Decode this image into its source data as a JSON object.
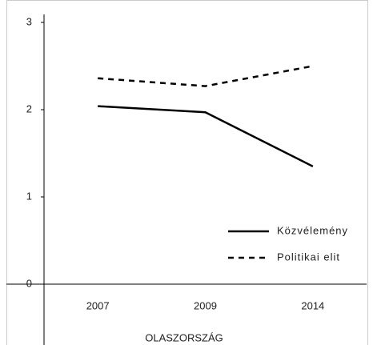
{
  "chart_data": {
    "type": "line",
    "categories": [
      "2007",
      "2009",
      "2014"
    ],
    "x_label": "OLASZORSZÁG",
    "series": [
      {
        "name": "Közvélemény",
        "color": "#000000",
        "dash": false,
        "values": [
          2.04,
          1.97,
          1.35
        ]
      },
      {
        "name": "Politikai elit",
        "color": "#000000",
        "dash": true,
        "values": [
          2.36,
          2.27,
          2.5
        ]
      }
    ],
    "ylim": [
      0,
      3
    ],
    "yticks": [
      0,
      1,
      2,
      3
    ],
    "grid": false,
    "legend": "lower right"
  }
}
